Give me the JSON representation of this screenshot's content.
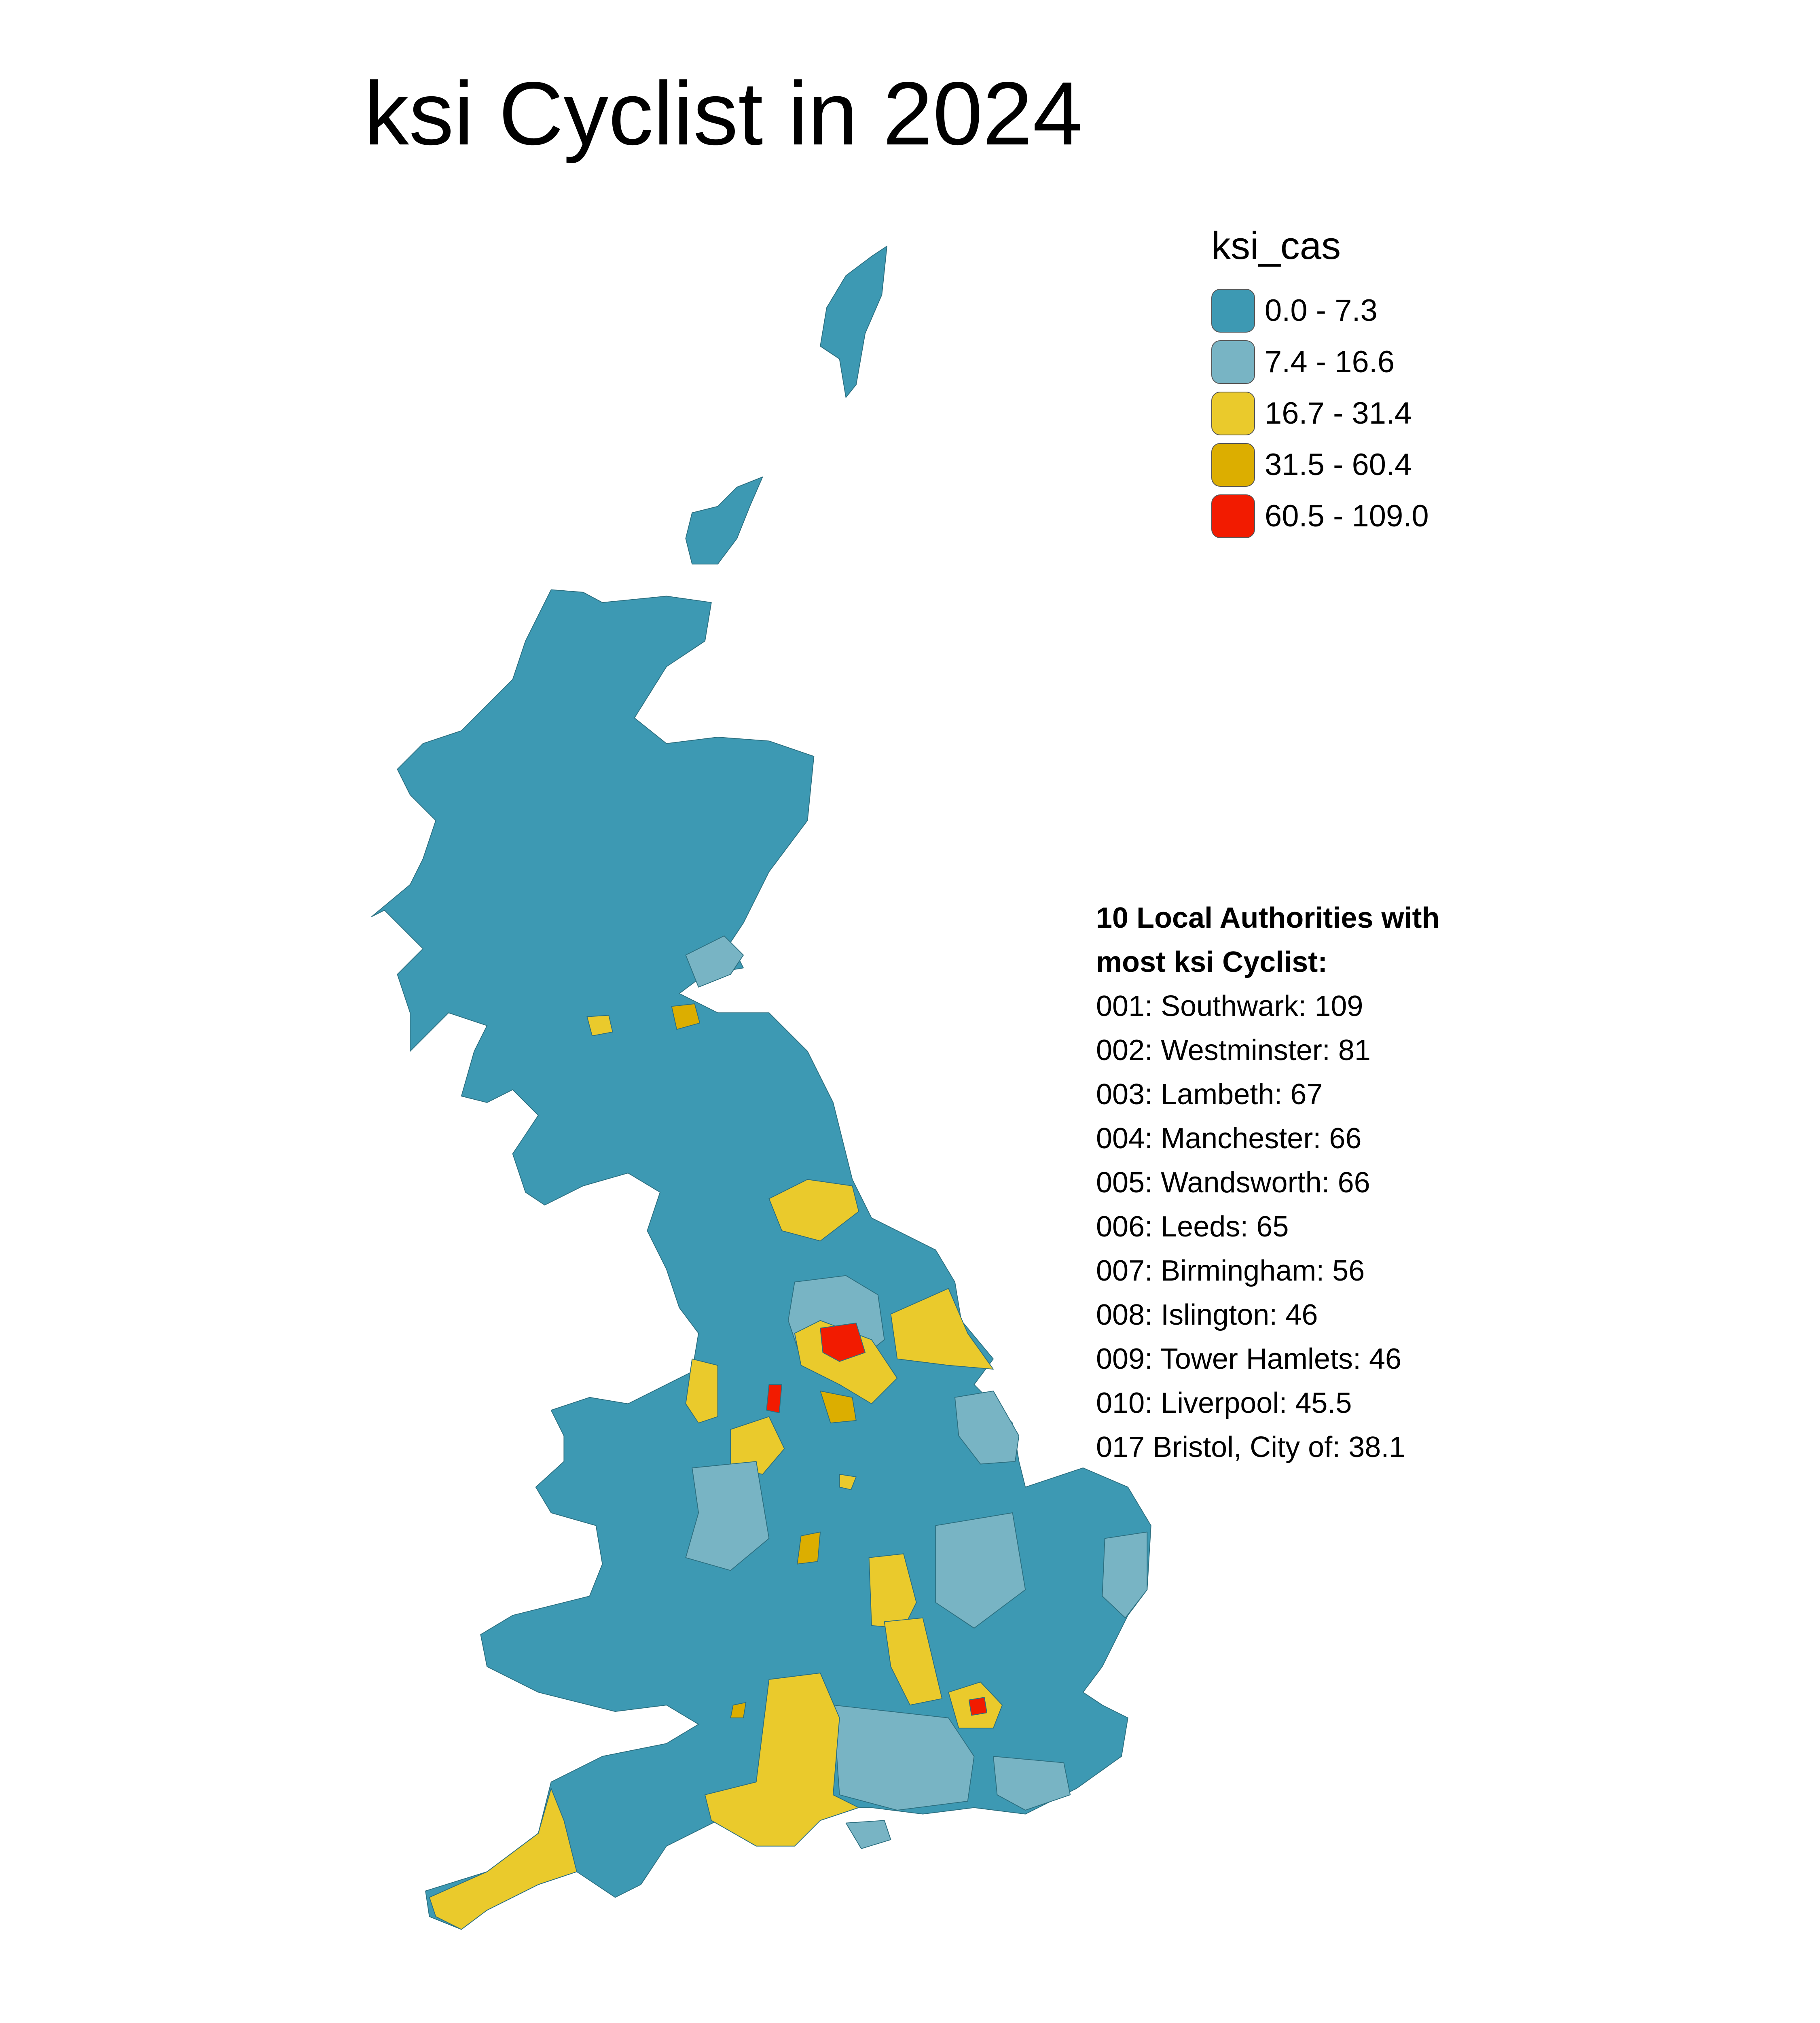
{
  "title": "ksi Cyclist in 2024",
  "legend": {
    "title": "ksi_cas",
    "items": [
      {
        "label": "0.0 - 7.3",
        "color": "#3d99b3"
      },
      {
        "label": "7.4 - 16.6",
        "color": "#78b4c4"
      },
      {
        "label": "16.7 - 31.4",
        "color": "#eaca2c"
      },
      {
        "label": "31.5 - 60.4",
        "color": "#dcae00"
      },
      {
        "label": "60.5 - 109.0",
        "color": "#f21b00"
      }
    ]
  },
  "top_list": {
    "heading_line1": "10 Local Authorities with",
    "heading_line2": "most ksi Cyclist:",
    "lines": [
      "001: Southwark: 109",
      "002: Westminster: 81",
      "003: Lambeth: 67",
      "004: Manchester: 66",
      "005: Wandsworth: 66",
      "006: Leeds: 65",
      "007: Birmingham: 56",
      "008: Islington: 46",
      "009: Tower Hamlets: 46",
      "010: Liverpool: 45.5",
      "017 Bristol, City of: 38.1"
    ]
  }
}
